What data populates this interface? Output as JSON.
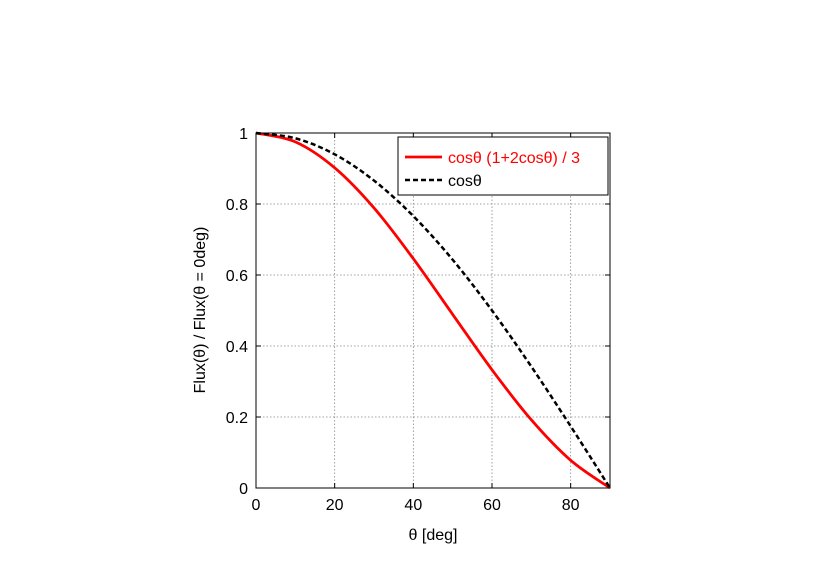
{
  "chart_data": {
    "type": "line",
    "title": "",
    "xlabel": "θ [deg]",
    "ylabel": "Flux(θ) / Flux(θ = 0deg)",
    "xlim": [
      0,
      90
    ],
    "ylim": [
      0,
      1
    ],
    "x_ticks": [
      "0",
      "20",
      "40",
      "60",
      "80"
    ],
    "y_ticks": [
      "0",
      "0.2",
      "0.4",
      "0.6",
      "0.8",
      "1"
    ],
    "grid": true,
    "legend_position": "top-right",
    "x": [
      0,
      10,
      20,
      30,
      40,
      50,
      60,
      70,
      80,
      90
    ],
    "series": [
      {
        "name": "cosθ (1+2cosθ) / 3",
        "color": "#ff0000",
        "style": "solid",
        "values": [
          1.0,
          0.975,
          0.902,
          0.789,
          0.646,
          0.489,
          0.333,
          0.192,
          0.078,
          0.0
        ]
      },
      {
        "name": "cosθ",
        "color": "#000000",
        "style": "dashed",
        "values": [
          1.0,
          0.985,
          0.94,
          0.866,
          0.766,
          0.643,
          0.5,
          0.342,
          0.174,
          0.0
        ]
      }
    ]
  }
}
